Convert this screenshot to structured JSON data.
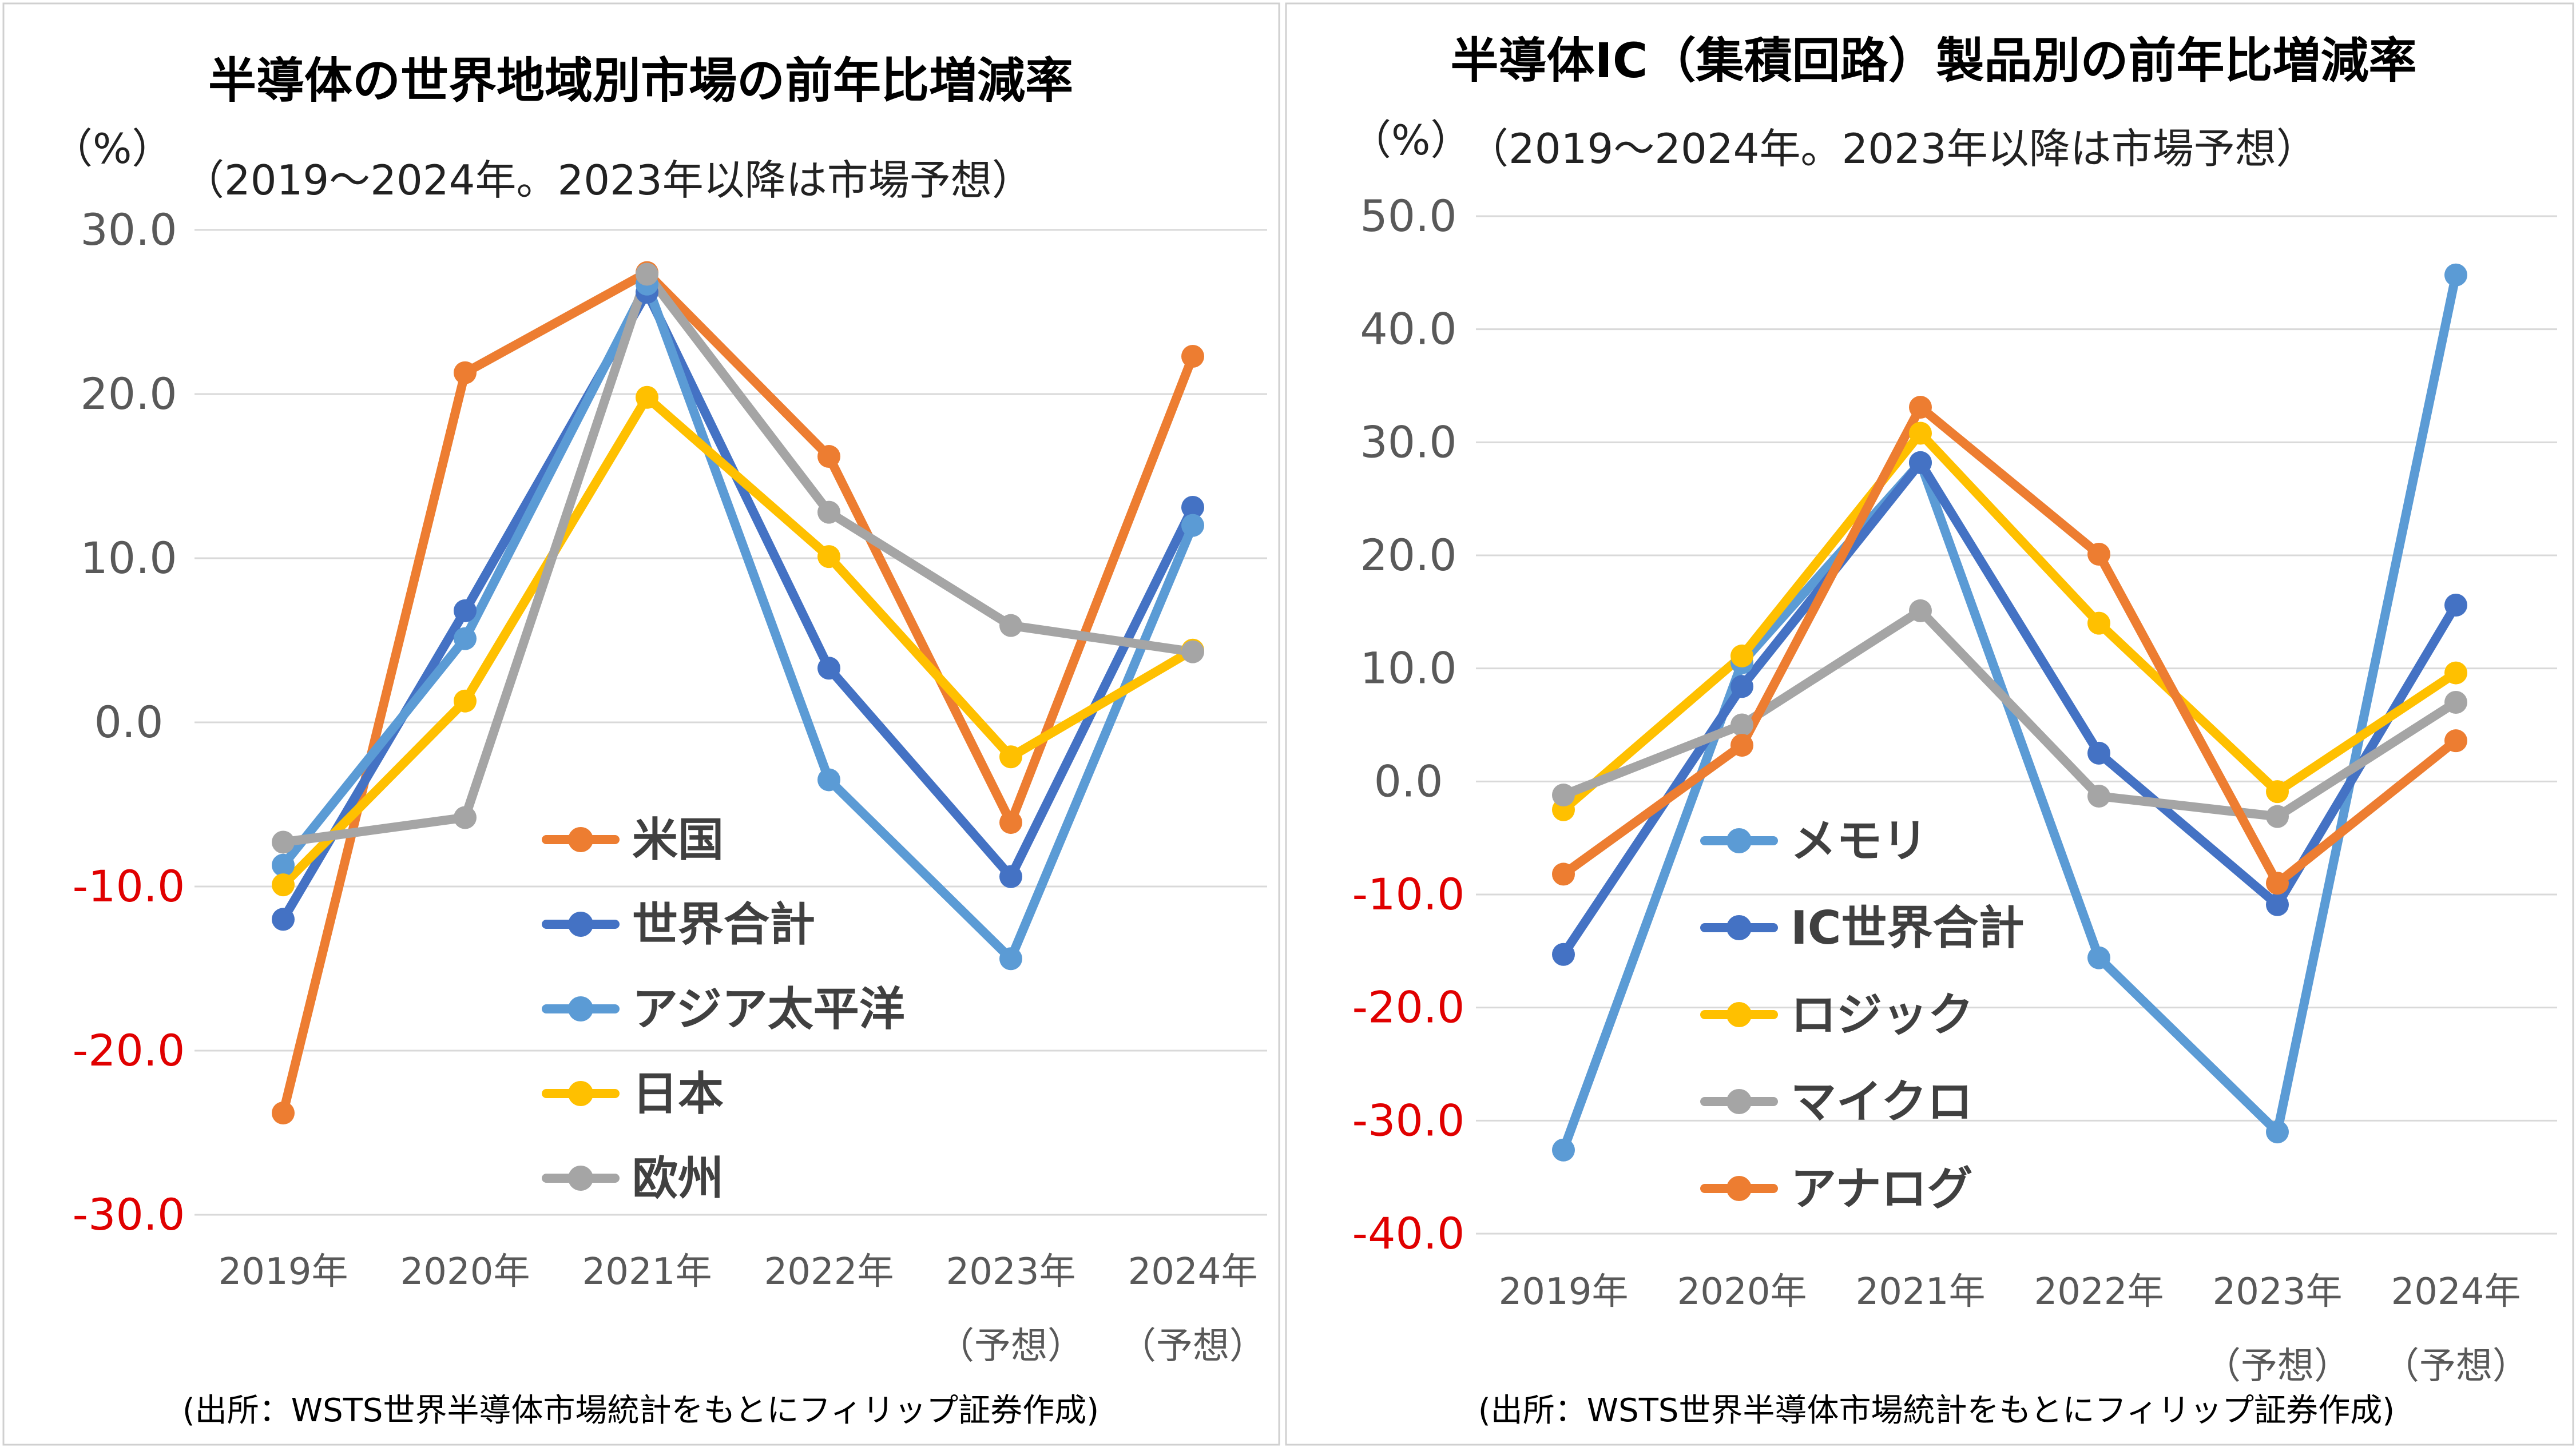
{
  "chart_data": [
    {
      "type": "line",
      "title": "半導体の世界地域別市場の前年比増減率",
      "subtitle": "（2019～2024年。2023年以降は市場予想）",
      "ylabel": "（%）",
      "ylim": [
        -30,
        30
      ],
      "yticks": [
        "30.0",
        "20.0",
        "10.0",
        "0.0",
        "-10.0",
        "-20.0",
        "-30.0"
      ],
      "negative_tick_color": "#e00000",
      "categories": [
        "2019年",
        "2020年",
        "2021年",
        "2022年",
        "2023年",
        "2024年"
      ],
      "category_notes": [
        "",
        "",
        "",
        "",
        "（予想）",
        "（予想）"
      ],
      "source": "(出所：WSTS世界半導体市場統計をもとにフィリップ証券作成)",
      "grid": true,
      "legend_position": "center",
      "series": [
        {
          "name": "米国",
          "color": "#ED7D31",
          "values": [
            -23.8,
            21.3,
            27.4,
            16.2,
            -6.1,
            22.3
          ]
        },
        {
          "name": "世界合計",
          "color": "#4472C4",
          "values": [
            -12.0,
            6.8,
            26.2,
            3.3,
            -9.4,
            13.1
          ]
        },
        {
          "name": "アジア太平洋",
          "color": "#5B9BD5",
          "values": [
            -8.7,
            5.1,
            26.7,
            -3.5,
            -14.4,
            12.0
          ]
        },
        {
          "name": "日本",
          "color": "#FFC000",
          "values": [
            -9.9,
            1.3,
            19.8,
            10.1,
            -2.1,
            4.4
          ]
        },
        {
          "name": "欧州",
          "color": "#A5A5A5",
          "values": [
            -7.3,
            -5.8,
            27.3,
            12.8,
            5.9,
            4.3
          ]
        }
      ]
    },
    {
      "type": "line",
      "title": "半導体IC（集積回路）製品別の前年比増減率",
      "subtitle": "（2019～2024年。2023年以降は市場予想）",
      "ylabel": "（%）",
      "ylim": [
        -40,
        50
      ],
      "yticks": [
        "50.0",
        "40.0",
        "30.0",
        "20.0",
        "10.0",
        "0.0",
        "-10.0",
        "-20.0",
        "-30.0",
        "-40.0"
      ],
      "negative_tick_color": "#e00000",
      "categories": [
        "2019年",
        "2020年",
        "2021年",
        "2022年",
        "2023年",
        "2024年"
      ],
      "category_notes": [
        "",
        "",
        "",
        "",
        "（予想）",
        "（予想）"
      ],
      "source": "(出所：WSTS世界半導体市場統計をもとにフィリップ証券作成)",
      "grid": true,
      "legend_position": "bottom-left",
      "series": [
        {
          "name": "メモリ",
          "color": "#5B9BD5",
          "values": [
            -32.6,
            10.5,
            28.2,
            -15.6,
            -31.0,
            44.8
          ]
        },
        {
          "name": "IC世界合計",
          "color": "#4472C4",
          "values": [
            -15.3,
            8.4,
            28.2,
            2.5,
            -10.9,
            15.6
          ]
        },
        {
          "name": "ロジック",
          "color": "#FFC000",
          "values": [
            -2.5,
            11.1,
            30.8,
            14.0,
            -0.9,
            9.6
          ]
        },
        {
          "name": "マイクロ",
          "color": "#A5A5A5",
          "values": [
            -1.2,
            5.0,
            15.1,
            -1.3,
            -3.1,
            7.0
          ]
        },
        {
          "name": "アナログ",
          "color": "#ED7D31",
          "values": [
            -8.2,
            3.2,
            33.1,
            20.1,
            -9.0,
            3.6
          ]
        }
      ]
    }
  ]
}
